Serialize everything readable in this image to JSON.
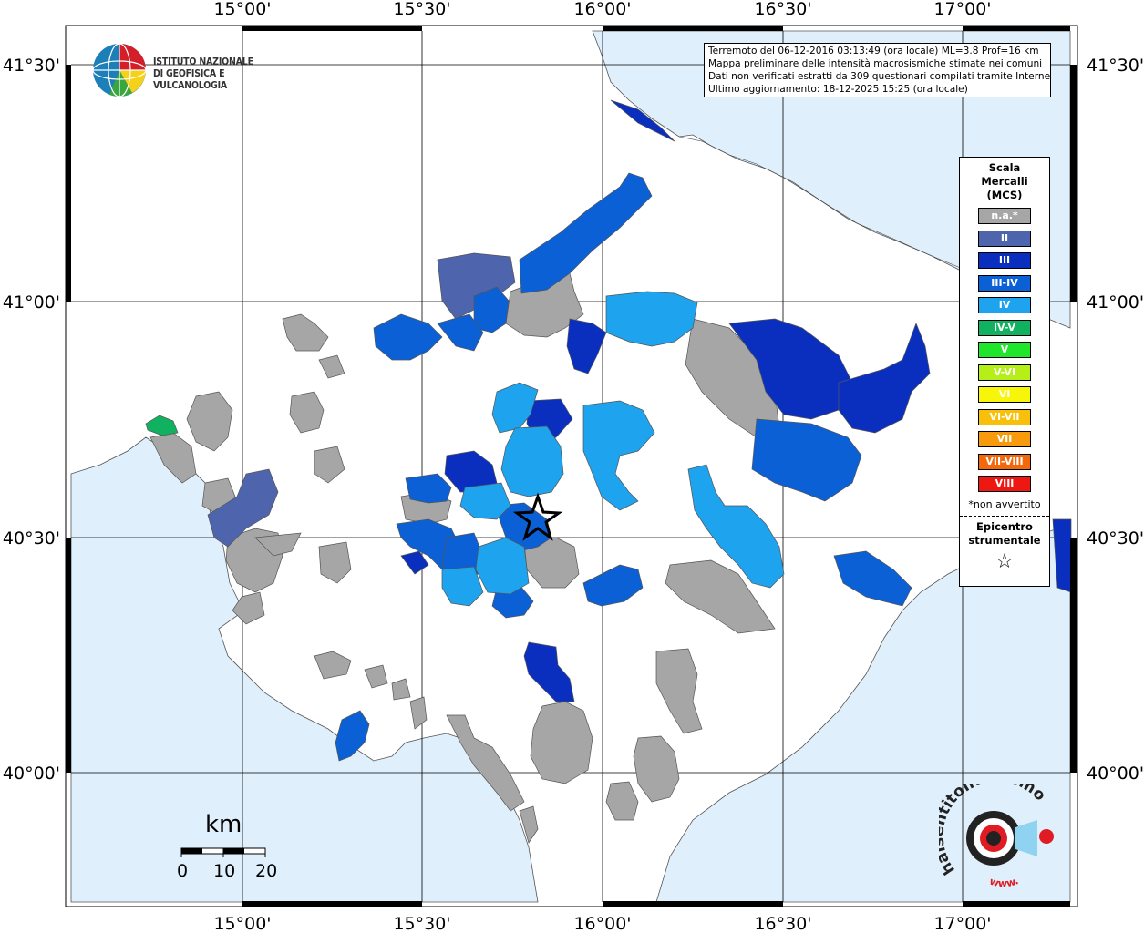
{
  "map": {
    "top_longitude_labels": [
      "15°00'",
      "15°30'",
      "16°00'",
      "16°30'",
      "17°00'"
    ],
    "bottom_longitude_labels": [
      "15°00'",
      "15°30'",
      "16°00'",
      "16°30'",
      "17°00'"
    ],
    "left_latitude_labels": [
      "41°30'",
      "41°00'",
      "40°30'",
      "40°00'"
    ],
    "right_latitude_labels": [
      "41°30'",
      "41°00'",
      "40°30'",
      "40°00'"
    ],
    "sea_color": "#dff0fc",
    "land_color": "#ffffff"
  },
  "info": {
    "line1": "Terremoto del 06-12-2016 03:13:49 (ora locale) ML=3.8 Prof=16 km",
    "line2": "Mappa preliminare delle intensità macrosismiche stimate nei comuni",
    "line3": "Dati non verificati estratti da 309 questionari compilati tramite Internet.",
    "line4": "Ultimo aggiornamento: 18-12-2025 15:25 (ora locale)"
  },
  "logo": {
    "line1": "ISTITUTO NAZIONALE",
    "line2": "DI GEOFISICA E VULCANOLOGIA"
  },
  "legend": {
    "title_line1": "Scala",
    "title_line2": "Mercalli",
    "title_line3": "(MCS)",
    "items": [
      {
        "label": "n.a.*",
        "color": "#a6a6a6"
      },
      {
        "label": "II",
        "color": "#4e64ad"
      },
      {
        "label": "III",
        "color": "#0a2fbf"
      },
      {
        "label": "III-IV",
        "color": "#0b60d6"
      },
      {
        "label": "IV",
        "color": "#1ea3ee"
      },
      {
        "label": "IV-V",
        "color": "#10b15f"
      },
      {
        "label": "V",
        "color": "#1fe62a"
      },
      {
        "label": "V-VI",
        "color": "#b6ef18"
      },
      {
        "label": "VI",
        "color": "#f7f60a"
      },
      {
        "label": "VI-VII",
        "color": "#f8c00a"
      },
      {
        "label": "VII",
        "color": "#f79a0c"
      },
      {
        "label": "VII-VIII",
        "color": "#f4680c"
      },
      {
        "label": "VIII",
        "color": "#ee1712"
      }
    ],
    "note": "*non avvertito",
    "epicenter_line1": "Epicentro",
    "epicenter_line2": "strumentale"
  },
  "scale": {
    "unit": "km",
    "labels": [
      "0",
      "10",
      "20"
    ]
  },
  "hsv_logo": {
    "text": "haisentitoilterremoto.it",
    "url_text": "www."
  }
}
